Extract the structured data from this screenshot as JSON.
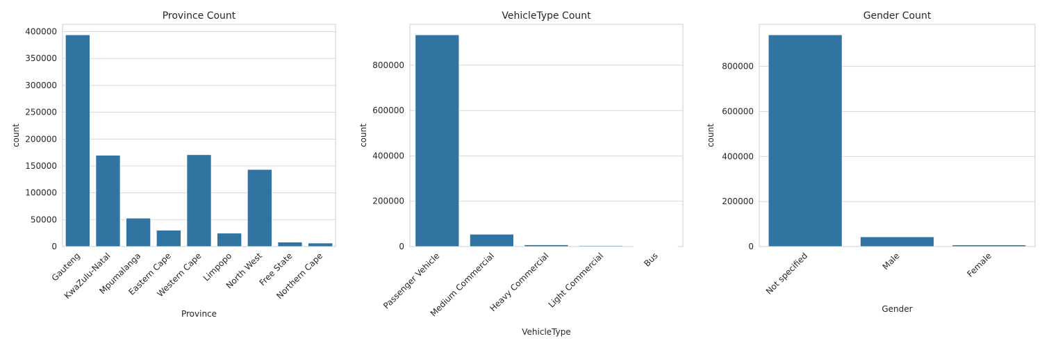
{
  "colors": {
    "bar": "#3274a1",
    "grid": "#d4d4d4",
    "frame": "#cccccc",
    "text": "#262626"
  },
  "chart_data": [
    {
      "type": "bar",
      "title": "Province Count",
      "xlabel": "Province",
      "ylabel": "count",
      "categories": [
        "Gauteng",
        "KwaZulu-Natal",
        "Mpumalanga",
        "Eastern Cape",
        "Western Cape",
        "Limpopo",
        "North West",
        "Free State",
        "Northern Cape"
      ],
      "values": [
        393900,
        169800,
        52700,
        30300,
        170800,
        24800,
        143300,
        8100,
        6400
      ],
      "ylim": [
        0,
        413600
      ],
      "yticks": [
        0,
        50000,
        100000,
        150000,
        200000,
        250000,
        300000,
        350000,
        400000
      ],
      "grid": true,
      "xtick_rotation": 45
    },
    {
      "type": "bar",
      "title": "VehicleType Count",
      "xlabel": "VehicleType",
      "ylabel": "count",
      "categories": [
        "Passenger Vehicle",
        "Medium Commercial",
        "Heavy Commercial",
        "Light Commercial",
        "Bus"
      ],
      "values": [
        933600,
        53900,
        7400,
        3400,
        900
      ],
      "ylim": [
        0,
        980300
      ],
      "yticks": [
        0,
        200000,
        400000,
        600000,
        800000
      ],
      "grid": true,
      "xtick_rotation": 45
    },
    {
      "type": "bar",
      "title": "Gender Count",
      "xlabel": "Gender",
      "ylabel": "count",
      "categories": [
        "Not specified",
        "Male",
        "Female"
      ],
      "values": [
        940000,
        42800,
        6800
      ],
      "ylim": [
        0,
        987000
      ],
      "yticks": [
        0,
        200000,
        400000,
        600000,
        800000
      ],
      "grid": true,
      "xtick_rotation": 45
    }
  ]
}
